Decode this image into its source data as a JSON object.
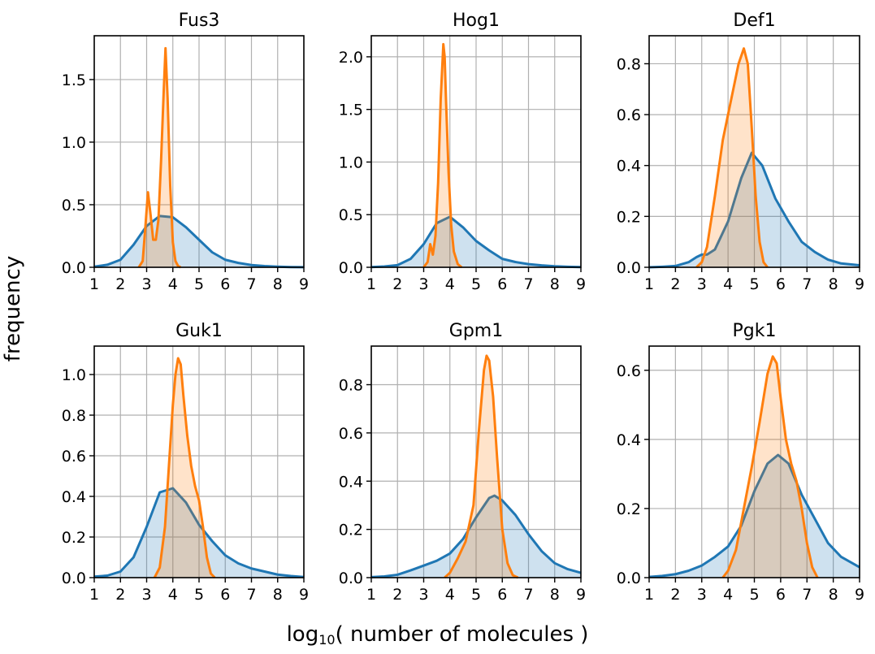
{
  "figure": {
    "ylabel": "frequency",
    "xlabel_prefix": "log",
    "xlabel_subscript": "10",
    "xlabel_suffix": "( number of molecules )"
  },
  "colors": {
    "series_blue": "#1f77b4",
    "series_orange": "#ff7f0e",
    "grid": "#b0b0b0"
  },
  "chart_data": [
    {
      "type": "area",
      "title": "Fus3",
      "xlim": [
        1,
        9
      ],
      "ylim": [
        0,
        1.85
      ],
      "xticks": [
        "1",
        "2",
        "3",
        "4",
        "5",
        "6",
        "7",
        "8",
        "9"
      ],
      "yticks": [
        "0.0",
        "0.5",
        "1.0",
        "1.5"
      ],
      "ytick_values": [
        0,
        0.5,
        1.0,
        1.5
      ],
      "grid": true,
      "series": [
        {
          "x": [
            1,
            1.5,
            2,
            2.5,
            3,
            3.5,
            4,
            4.5,
            5,
            5.5,
            6,
            6.5,
            7,
            7.5,
            8,
            8.5,
            9
          ],
          "y": [
            0.005,
            0.02,
            0.06,
            0.18,
            0.33,
            0.41,
            0.4,
            0.32,
            0.22,
            0.12,
            0.06,
            0.035,
            0.018,
            0.01,
            0.005,
            0.002,
            0.001
          ]
        },
        {
          "x": [
            2.7,
            2.85,
            2.95,
            3.05,
            3.15,
            3.25,
            3.35,
            3.45,
            3.55,
            3.65,
            3.72,
            3.8,
            3.9,
            4.0,
            4.1,
            4.2,
            4.3
          ],
          "y": [
            0,
            0.05,
            0.32,
            0.6,
            0.42,
            0.22,
            0.22,
            0.38,
            0.85,
            1.4,
            1.75,
            1.35,
            0.65,
            0.2,
            0.05,
            0.01,
            0
          ]
        }
      ]
    },
    {
      "type": "area",
      "title": "Hog1",
      "xlim": [
        1,
        9
      ],
      "ylim": [
        0,
        2.2
      ],
      "xticks": [
        "1",
        "2",
        "3",
        "4",
        "5",
        "6",
        "7",
        "8",
        "9"
      ],
      "yticks": [
        "0.0",
        "0.5",
        "1.0",
        "1.5",
        "2.0"
      ],
      "ytick_values": [
        0,
        0.5,
        1.0,
        1.5,
        2.0
      ],
      "grid": true,
      "series": [
        {
          "x": [
            1,
            1.5,
            2,
            2.5,
            3,
            3.5,
            4,
            4.5,
            5,
            5.5,
            6,
            6.5,
            7,
            7.5,
            8,
            8.5,
            9
          ],
          "y": [
            0.002,
            0.008,
            0.02,
            0.08,
            0.22,
            0.42,
            0.48,
            0.38,
            0.25,
            0.16,
            0.08,
            0.05,
            0.03,
            0.018,
            0.01,
            0.005,
            0.002
          ]
        },
        {
          "x": [
            3.0,
            3.15,
            3.25,
            3.35,
            3.45,
            3.55,
            3.65,
            3.75,
            3.8,
            3.85,
            3.95,
            4.05,
            4.15,
            4.3,
            4.45
          ],
          "y": [
            0,
            0.05,
            0.22,
            0.12,
            0.3,
            0.8,
            1.6,
            2.12,
            2.0,
            1.6,
            0.9,
            0.4,
            0.15,
            0.03,
            0
          ]
        }
      ]
    },
    {
      "type": "area",
      "title": "Def1",
      "xlim": [
        1,
        9
      ],
      "ylim": [
        0,
        0.91
      ],
      "xticks": [
        "1",
        "2",
        "3",
        "4",
        "5",
        "6",
        "7",
        "8",
        "9"
      ],
      "yticks": [
        "0.0",
        "0.2",
        "0.4",
        "0.6",
        "0.8"
      ],
      "ytick_values": [
        0,
        0.2,
        0.4,
        0.6,
        0.8
      ],
      "grid": true,
      "series": [
        {
          "x": [
            1,
            1.5,
            2,
            2.5,
            2.8,
            3,
            3.2,
            3.5,
            4,
            4.5,
            4.9,
            5.3,
            5.8,
            6.3,
            6.8,
            7.3,
            7.8,
            8.3,
            9
          ],
          "y": [
            0,
            0.002,
            0.005,
            0.02,
            0.04,
            0.05,
            0.05,
            0.07,
            0.18,
            0.35,
            0.45,
            0.4,
            0.27,
            0.18,
            0.1,
            0.06,
            0.03,
            0.015,
            0.008
          ]
        },
        {
          "x": [
            2.8,
            3.0,
            3.2,
            3.5,
            3.8,
            4.1,
            4.4,
            4.6,
            4.75,
            4.9,
            5.05,
            5.2,
            5.35,
            5.5
          ],
          "y": [
            0,
            0.02,
            0.08,
            0.28,
            0.5,
            0.65,
            0.8,
            0.86,
            0.8,
            0.55,
            0.28,
            0.1,
            0.02,
            0
          ]
        }
      ]
    },
    {
      "type": "area",
      "title": "Guk1",
      "xlim": [
        1,
        9
      ],
      "ylim": [
        0,
        1.14
      ],
      "xticks": [
        "1",
        "2",
        "3",
        "4",
        "5",
        "6",
        "7",
        "8",
        "9"
      ],
      "yticks": [
        "0.0",
        "0.2",
        "0.4",
        "0.6",
        "0.8",
        "1.0"
      ],
      "ytick_values": [
        0,
        0.2,
        0.4,
        0.6,
        0.8,
        1.0
      ],
      "grid": true,
      "series": [
        {
          "x": [
            1,
            1.5,
            2,
            2.5,
            3,
            3.5,
            4,
            4.5,
            5,
            5.5,
            6,
            6.5,
            7,
            7.5,
            8,
            8.5,
            9
          ],
          "y": [
            0.005,
            0.01,
            0.03,
            0.1,
            0.25,
            0.42,
            0.44,
            0.37,
            0.26,
            0.18,
            0.11,
            0.07,
            0.045,
            0.03,
            0.015,
            0.008,
            0.003
          ]
        },
        {
          "x": [
            3.3,
            3.5,
            3.7,
            3.85,
            4.0,
            4.1,
            4.2,
            4.3,
            4.4,
            4.55,
            4.7,
            4.85,
            5.0,
            5.15,
            5.3,
            5.45,
            5.6
          ],
          "y": [
            0,
            0.05,
            0.25,
            0.55,
            0.85,
            1.0,
            1.08,
            1.05,
            0.9,
            0.7,
            0.55,
            0.45,
            0.38,
            0.25,
            0.1,
            0.02,
            0
          ]
        }
      ]
    },
    {
      "type": "area",
      "title": "Gpm1",
      "xlim": [
        1,
        9
      ],
      "ylim": [
        0,
        0.96
      ],
      "xticks": [
        "1",
        "2",
        "3",
        "4",
        "5",
        "6",
        "7",
        "8",
        "9"
      ],
      "yticks": [
        "0.0",
        "0.2",
        "0.4",
        "0.6",
        "0.8"
      ],
      "ytick_values": [
        0,
        0.2,
        0.4,
        0.6,
        0.8
      ],
      "grid": true,
      "series": [
        {
          "x": [
            1,
            1.5,
            2,
            2.5,
            3,
            3.5,
            4,
            4.5,
            5,
            5.5,
            5.7,
            6,
            6.5,
            7,
            7.5,
            8,
            8.5,
            9
          ],
          "y": [
            0.002,
            0.005,
            0.012,
            0.03,
            0.05,
            0.07,
            0.1,
            0.16,
            0.25,
            0.33,
            0.34,
            0.32,
            0.26,
            0.18,
            0.11,
            0.06,
            0.035,
            0.02
          ]
        },
        {
          "x": [
            3.8,
            4.0,
            4.3,
            4.6,
            4.9,
            5.1,
            5.3,
            5.4,
            5.5,
            5.65,
            5.8,
            6.0,
            6.2,
            6.4,
            6.6
          ],
          "y": [
            0,
            0.02,
            0.08,
            0.15,
            0.3,
            0.6,
            0.86,
            0.92,
            0.9,
            0.75,
            0.5,
            0.2,
            0.06,
            0.01,
            0
          ]
        }
      ]
    },
    {
      "type": "area",
      "title": "Pgk1",
      "xlim": [
        1,
        9
      ],
      "ylim": [
        0,
        0.67
      ],
      "xticks": [
        "1",
        "2",
        "3",
        "4",
        "5",
        "6",
        "7",
        "8",
        "9"
      ],
      "yticks": [
        "0.0",
        "0.2",
        "0.4",
        "0.6"
      ],
      "ytick_values": [
        0,
        0.2,
        0.4,
        0.6
      ],
      "grid": true,
      "series": [
        {
          "x": [
            1,
            1.5,
            2,
            2.5,
            3,
            3.5,
            4,
            4.5,
            5,
            5.5,
            5.9,
            6.3,
            6.8,
            7.3,
            7.8,
            8.3,
            9
          ],
          "y": [
            0.002,
            0.005,
            0.01,
            0.02,
            0.035,
            0.06,
            0.09,
            0.15,
            0.25,
            0.33,
            0.355,
            0.33,
            0.24,
            0.17,
            0.1,
            0.06,
            0.03
          ]
        },
        {
          "x": [
            3.8,
            4.0,
            4.3,
            4.6,
            4.9,
            5.2,
            5.5,
            5.7,
            5.85,
            6.0,
            6.2,
            6.4,
            6.6,
            6.8,
            7.0,
            7.2,
            7.4
          ],
          "y": [
            0,
            0.02,
            0.08,
            0.2,
            0.32,
            0.45,
            0.59,
            0.64,
            0.62,
            0.52,
            0.4,
            0.33,
            0.28,
            0.2,
            0.1,
            0.03,
            0
          ]
        }
      ]
    }
  ]
}
